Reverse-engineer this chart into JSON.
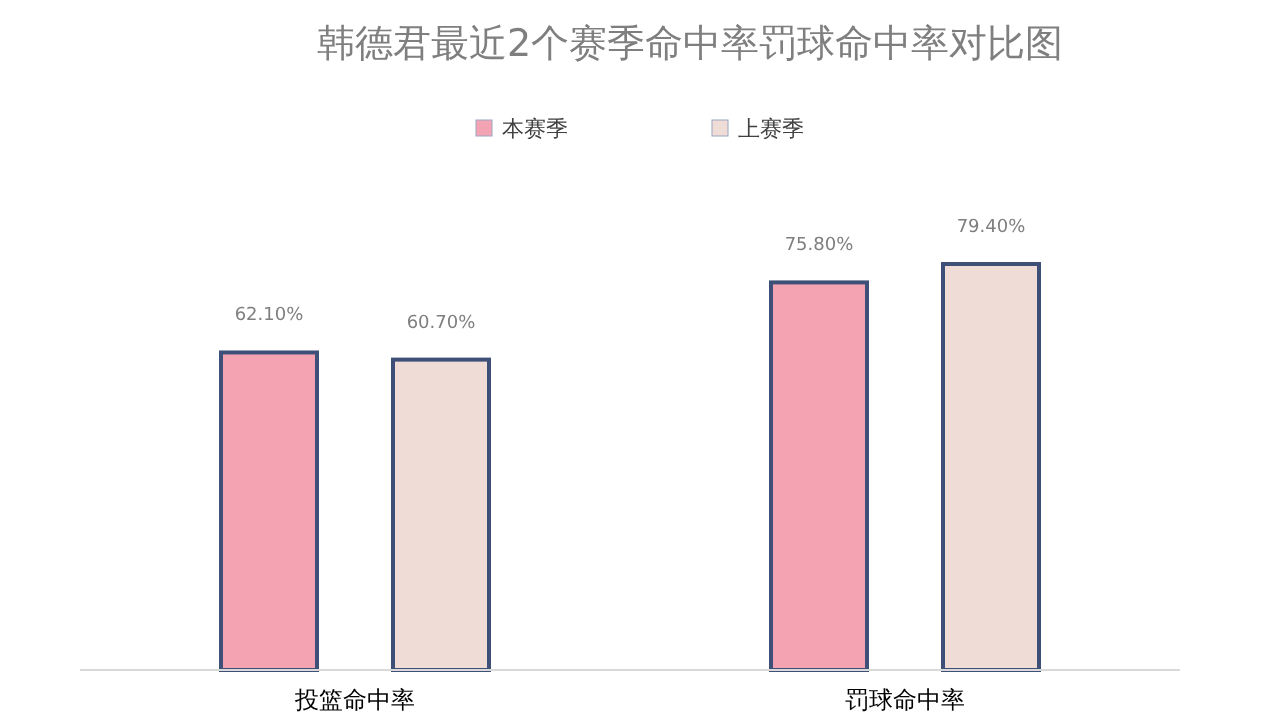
{
  "chart_data": {
    "type": "bar",
    "title": "韩德君最近2个赛季命中率罚球命中率对比图",
    "categories": [
      "投篮命中率",
      "罚球命中率"
    ],
    "series": [
      {
        "name": "本赛季",
        "color": "#f4a3b2",
        "values": [
          62.1,
          75.8
        ],
        "value_labels": [
          "62.10%",
          "75.80%"
        ]
      },
      {
        "name": "上赛季",
        "color": "#efdcd6",
        "values": [
          60.7,
          79.4
        ],
        "value_labels": [
          "60.70%",
          "79.40%"
        ]
      }
    ],
    "legend": "top"
  }
}
